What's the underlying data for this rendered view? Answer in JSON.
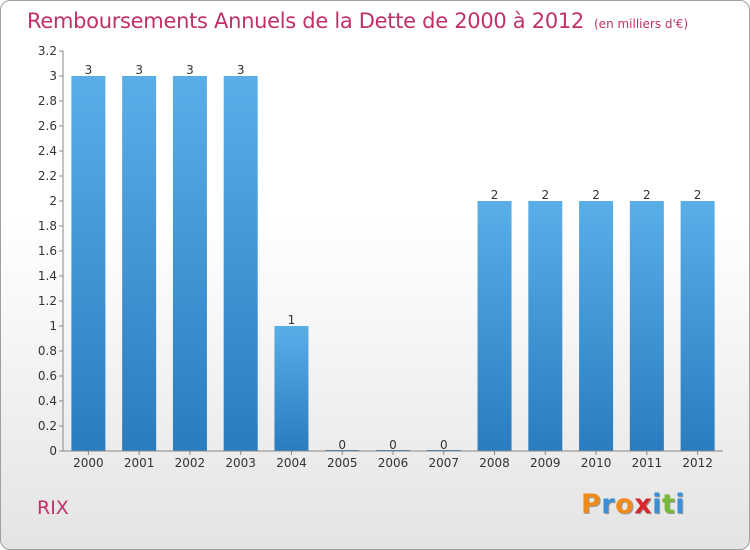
{
  "header": {
    "title": "Remboursements Annuels de la Dette de 2000 à 2012",
    "unit": "(en milliers d'€)"
  },
  "footer": {
    "commune": "RIX",
    "logo_letters": [
      {
        "char": "P",
        "color": "#f08a1a"
      },
      {
        "char": "r",
        "color": "#3a8fd6"
      },
      {
        "char": "o",
        "color": "#f08a1a"
      },
      {
        "char": "x",
        "color": "#d8282e"
      },
      {
        "char": "i",
        "color": "#3a8fd6"
      },
      {
        "char": "t",
        "color": "#7ab83a"
      },
      {
        "char": "i",
        "color": "#3a8fd6"
      }
    ]
  },
  "chart_data": {
    "type": "bar",
    "title": "Remboursements Annuels de la Dette de 2000 à 2012",
    "categories": [
      "2000",
      "2001",
      "2002",
      "2003",
      "2004",
      "2005",
      "2006",
      "2007",
      "2008",
      "2009",
      "2010",
      "2011",
      "2012"
    ],
    "values": [
      3,
      3,
      3,
      3,
      1,
      0,
      0,
      0,
      2,
      2,
      2,
      2,
      2
    ],
    "ylim": [
      0,
      3.2
    ],
    "yticks": [
      "0",
      "0.2",
      "0.4",
      "0.6",
      "0.8",
      "1",
      "1.2",
      "1.4",
      "1.6",
      "1.8",
      "2",
      "2.2",
      "2.4",
      "2.6",
      "2.8",
      "3",
      "3.2"
    ],
    "grid": false,
    "colors": {
      "bar_top": "#5aaee8",
      "bar_bottom": "#2a7cbe",
      "text": "#333333",
      "axis": "#888888"
    }
  }
}
